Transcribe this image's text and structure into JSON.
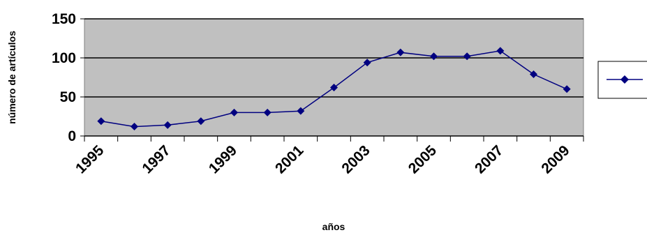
{
  "chart_data": {
    "type": "line",
    "xlabel": "años",
    "ylabel": "número de artículos",
    "ylim": [
      0,
      150
    ],
    "yticks": [
      "0",
      "50",
      "100",
      "150"
    ],
    "xticks": [
      "1995",
      "1997",
      "1999",
      "2001",
      "2003",
      "2005",
      "2007",
      "2009"
    ],
    "x": [
      1995,
      1996,
      1997,
      1998,
      1999,
      2000,
      2001,
      2002,
      2003,
      2004,
      2005,
      2006,
      2007,
      2008,
      2009
    ],
    "series": [
      {
        "values": [
          19,
          12,
          14,
          19,
          30,
          30,
          32,
          62,
          94,
          107,
          102,
          102,
          109,
          79,
          60
        ]
      }
    ],
    "grid": true,
    "legend_position": "right",
    "colors": {
      "plot_background": "#c0c0c0",
      "line": "#000080",
      "marker": "#000080",
      "gridline": "#000000"
    },
    "marker_icon": "diamond-icon"
  }
}
